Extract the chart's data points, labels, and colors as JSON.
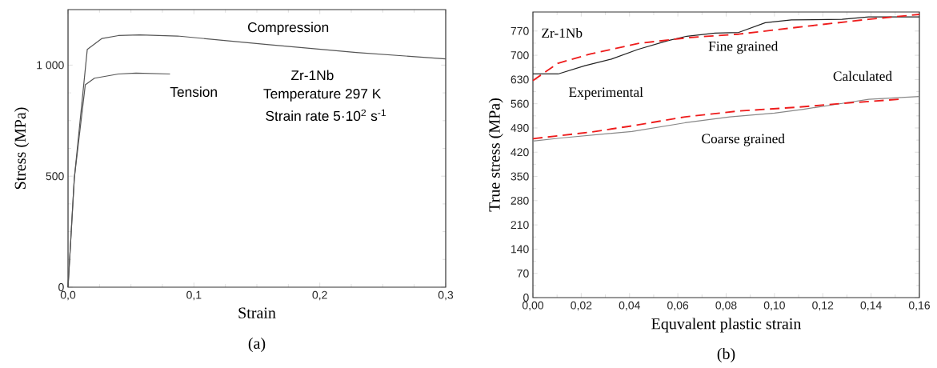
{
  "chart_data": [
    {
      "type": "line",
      "xlabel": "Strain",
      "ylabel": "Stress (MPa)",
      "xlim": [
        0,
        0.3
      ],
      "ylim": [
        0,
        1250
      ],
      "xticks": [
        {
          "value": 0,
          "label": "0,0"
        },
        {
          "value": 0.1,
          "label": "0,1"
        },
        {
          "value": 0.2,
          "label": "0,2"
        },
        {
          "value": 0.3,
          "label": "0,3"
        }
      ],
      "yticks": [
        0,
        500,
        {
          "value": 1000,
          "label": "1 000"
        }
      ],
      "series": [
        {
          "color": "#555555",
          "line_style": "solid",
          "x": [
            0,
            0.005,
            0.0153,
            0.027,
            0.04,
            0.057,
            0.087,
            0.158,
            0.229,
            0.3
          ],
          "values": [
            0,
            491,
            1071,
            1120,
            1133,
            1136,
            1131,
            1093,
            1057,
            1028
          ]
        },
        {
          "color": "#555555",
          "line_style": "solid",
          "x": [
            0,
            0.005,
            0.0137,
            0.021,
            0.04,
            0.054,
            0.081
          ],
          "values": [
            0,
            491,
            911,
            941,
            960,
            964,
            960
          ]
        }
      ],
      "annotations": [
        "Compression",
        "Tension",
        "Zr-1Nb",
        "Temperature 297 K",
        "Strain rate 5·10$^{2}$ s$^{-1}$",
        "(a)"
      ]
    },
    {
      "type": "line",
      "xlabel": "Equvalent plastic strain",
      "ylabel": "True stress (MPa)",
      "xlim": [
        0,
        0.16
      ],
      "ylim": [
        0,
        825
      ],
      "xticks": [
        {
          "value": 0,
          "label": "0,00"
        },
        {
          "value": 0.02,
          "label": "0,02"
        },
        {
          "value": 0.04,
          "label": "0,04"
        },
        {
          "value": 0.06,
          "label": "0,06"
        },
        {
          "value": 0.08,
          "label": "0,08"
        },
        {
          "value": 0.1,
          "label": "0,10"
        },
        {
          "value": 0.12,
          "label": "0,12"
        },
        {
          "value": 0.14,
          "label": "0,14"
        },
        {
          "value": 0.16,
          "label": "0,16"
        }
      ],
      "yticks": [
        0,
        70,
        140,
        210,
        280,
        350,
        420,
        490,
        560,
        630,
        700,
        770
      ],
      "series": [
        {
          "color": "#222222",
          "line_style": "solid",
          "x": [
            0,
            0.0104,
            0.0215,
            0.0325,
            0.0435,
            0.0558,
            0.0637,
            0.0754,
            0.0852,
            0.0962,
            0.107,
            0.128,
            0.139,
            0.16
          ],
          "values": [
            646,
            646,
            670,
            689,
            717,
            742,
            755,
            764,
            766,
            794,
            802,
            804,
            811,
            811
          ]
        },
        {
          "color": "#ee1c1c",
          "line_style": "dashed",
          "x": [
            0,
            0.0104,
            0.0239,
            0.0435,
            0.0644,
            0.0852,
            0.1097,
            0.139,
            0.16
          ],
          "values": [
            627,
            677,
            704,
            734,
            751,
            761,
            781,
            804,
            818
          ]
        },
        {
          "color": "#888888",
          "line_style": "solid",
          "x": [
            0,
            0.0116,
            0.041,
            0.063,
            0.0815,
            0.1,
            0.112,
            0.128,
            0.139,
            0.16
          ],
          "values": [
            452,
            461,
            480,
            505,
            522,
            533,
            544,
            561,
            573,
            581
          ]
        },
        {
          "color": "#ee1c1c",
          "line_style": "dashed",
          "x": [
            0,
            0.0239,
            0.041,
            0.063,
            0.0852,
            0.1097,
            0.128,
            0.152
          ],
          "values": [
            459,
            478,
            496,
            522,
            539,
            550,
            561,
            573
          ]
        }
      ],
      "annotations": [
        "Zr-1Nb",
        "Fine grained",
        "Calculated",
        "Experimental",
        "Coarse grained",
        "(b)"
      ]
    }
  ]
}
